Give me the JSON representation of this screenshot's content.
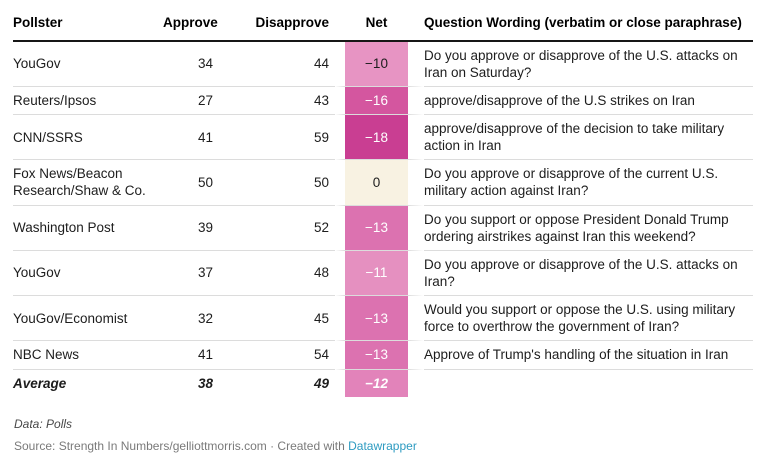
{
  "table": {
    "headers": {
      "pollster": "Pollster",
      "approve": "Approve",
      "disapprove": "Disapprove",
      "net": "Net",
      "question": "Question Wording (verbatim or close paraphrase)"
    },
    "rows": [
      {
        "pollster": "YouGov",
        "approve": "34",
        "disapprove": "44",
        "net": "−10",
        "net_bg": "#e794c3",
        "net_color": "#1d1d1d",
        "question": "Do you approve or disapprove of the U.S. attacks on Iran on Saturday?"
      },
      {
        "pollster": "Reuters/Ipsos",
        "approve": "27",
        "disapprove": "43",
        "net": "−16",
        "net_bg": "#d4569f",
        "net_color": "#ffffff",
        "question": "approve/disapprove of the U.S strikes on Iran"
      },
      {
        "pollster": "CNN/SSRS",
        "approve": "41",
        "disapprove": "59",
        "net": "−18",
        "net_bg": "#c93e92",
        "net_color": "#ffffff",
        "question": "approve/disapprove of the decision to take military action in Iran"
      },
      {
        "pollster": "Fox News/Beacon Research/Shaw & Co.",
        "approve": "50",
        "disapprove": "50",
        "net": "0",
        "net_bg": "#f8f2e2",
        "net_color": "#1d1d1d",
        "question": "Do you approve or disapprove of the current U.S. military action against Iran?"
      },
      {
        "pollster": "Washington Post",
        "approve": "39",
        "disapprove": "52",
        "net": "−13",
        "net_bg": "#dc72b0",
        "net_color": "#ffffff",
        "question": "Do you support or oppose President Donald Trump ordering airstrikes against Iran this weekend?"
      },
      {
        "pollster": "YouGov",
        "approve": "37",
        "disapprove": "48",
        "net": "−11",
        "net_bg": "#e590c0",
        "net_color": "#ffffff",
        "question": "Do you approve or disapprove of the U.S. attacks on Iran?"
      },
      {
        "pollster": "YouGov/Economist",
        "approve": "32",
        "disapprove": "45",
        "net": "−13",
        "net_bg": "#dc72b0",
        "net_color": "#ffffff",
        "question": "Would you support or oppose the U.S. using military force to overthrow the government of Iran?"
      },
      {
        "pollster": "NBC News",
        "approve": "41",
        "disapprove": "54",
        "net": "−13",
        "net_bg": "#dc72b0",
        "net_color": "#ffffff",
        "question": "Approve of Trump's handling of the situation in Iran"
      },
      {
        "pollster": "Average",
        "approve": "38",
        "disapprove": "49",
        "net": "−12",
        "net_bg": "#e283ba",
        "net_color": "#ffffff",
        "question": ""
      }
    ]
  },
  "footer": {
    "data_line": "Data: Polls",
    "source_prefix": "Source: Strength In Numbers/gelliottmorris.com · Created with ",
    "source_link": "Datawrapper",
    "link_color": "#2d9bc1"
  },
  "chart_data": {
    "type": "table",
    "title": "",
    "columns": [
      "Pollster",
      "Approve",
      "Disapprove",
      "Net",
      "Question Wording (verbatim or close paraphrase)"
    ],
    "rows": [
      [
        "YouGov",
        34,
        44,
        -10,
        "Do you approve or disapprove of the U.S. attacks on Iran on Saturday?"
      ],
      [
        "Reuters/Ipsos",
        27,
        43,
        -16,
        "approve/disapprove of the U.S strikes on Iran"
      ],
      [
        "CNN/SSRS",
        41,
        59,
        -18,
        "approve/disapprove of the decision to take military action in Iran"
      ],
      [
        "Fox News/Beacon Research/Shaw & Co.",
        50,
        50,
        0,
        "Do you approve or disapprove of the current U.S. military action against Iran?"
      ],
      [
        "Washington Post",
        39,
        52,
        -13,
        "Do you support or oppose President Donald Trump ordering airstrikes against Iran this weekend?"
      ],
      [
        "YouGov",
        37,
        48,
        -11,
        "Do you approve or disapprove of the U.S. attacks on Iran?"
      ],
      [
        "YouGov/Economist",
        32,
        45,
        -13,
        "Would you support or oppose the U.S. using military force to overthrow the government of Iran?"
      ],
      [
        "NBC News",
        41,
        54,
        -13,
        "Approve of Trump's handling of the situation in Iran"
      ],
      [
        "Average",
        38,
        49,
        -12,
        ""
      ]
    ],
    "net_heatmap": "pink diverging scale: more negative net = darker pink, 0 = cream",
    "notes": "Data: Polls",
    "source": "Strength In Numbers/gelliottmorris.com",
    "created_with": "Datawrapper"
  }
}
